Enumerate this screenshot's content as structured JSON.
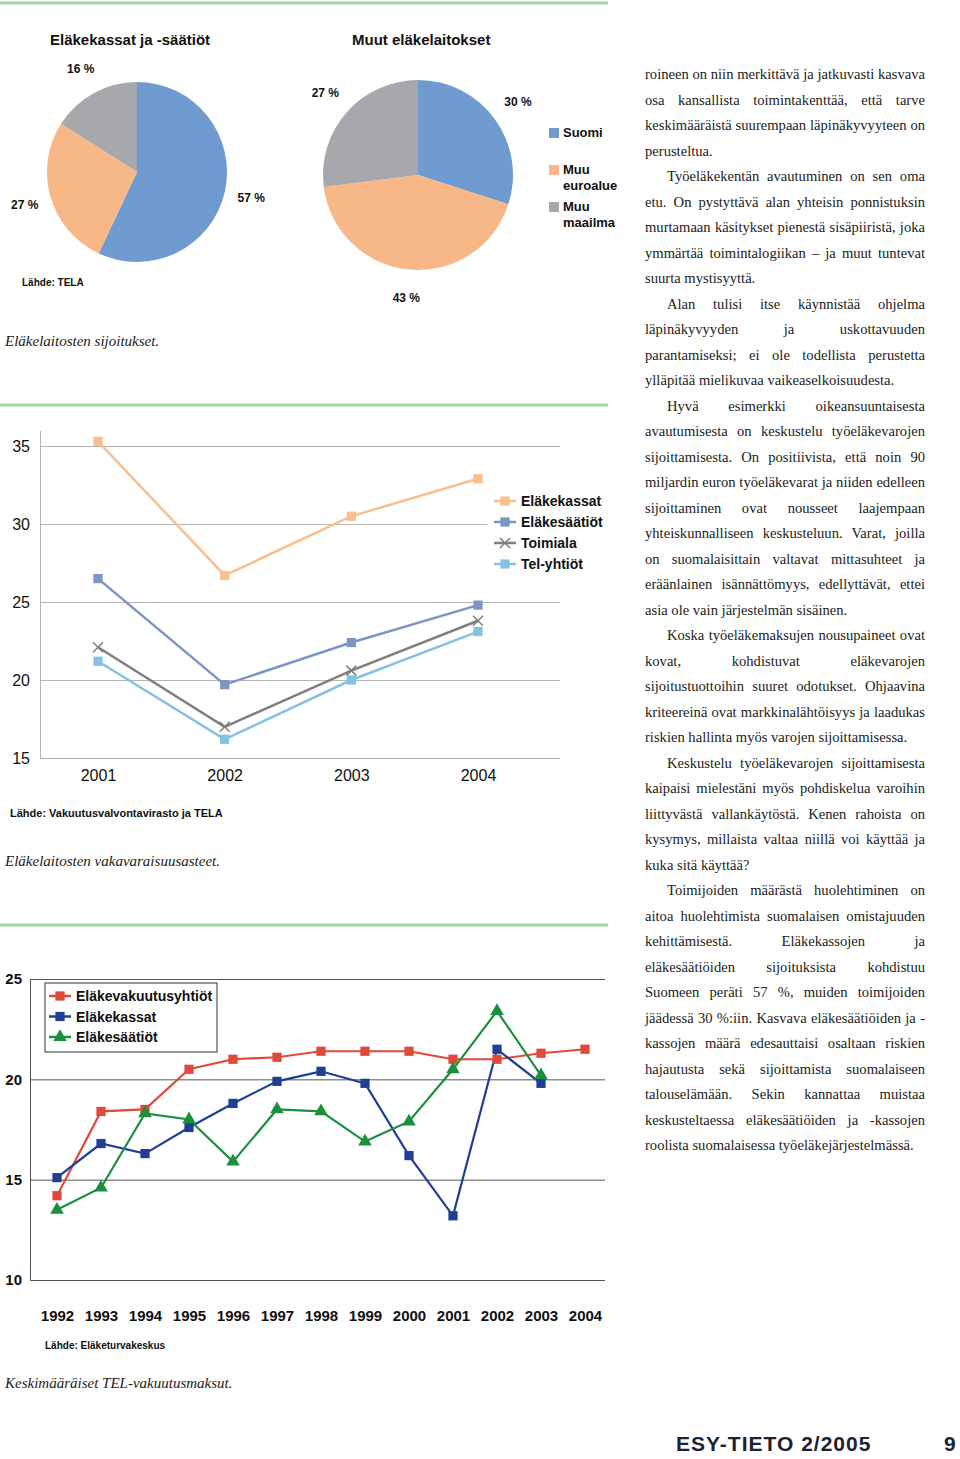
{
  "chart_data": [
    {
      "type": "pie",
      "title": "Eläkekassat ja -säätiöt",
      "source": "Lähde: TELA",
      "caption": "Eläkelaitosten sijoitukset.",
      "values": [
        57,
        27,
        16
      ],
      "value_labels": [
        "57 %",
        "27 %",
        "16 %"
      ],
      "colors": [
        "#6f9bd1",
        "#f8b786",
        "#a7a8ac"
      ],
      "data_labels": true
    },
    {
      "type": "pie",
      "title": "Muut eläkelaitokset",
      "categories": [
        "Suomi",
        "Muu euroalue",
        "Muu maailma"
      ],
      "values": [
        30,
        43,
        27
      ],
      "value_labels": [
        "30 %",
        "43 %",
        "27 %"
      ],
      "colors": [
        "#6f9bd1",
        "#f8b786",
        "#a7a8ac"
      ],
      "data_labels": true,
      "legend": "right"
    },
    {
      "type": "line",
      "caption": "Eläkelaitosten vakavaraisuusasteet.",
      "source": "Lähde: Vakuutusvalvontavirasto ja TELA",
      "categories": [
        "2001",
        "2002",
        "2003",
        "2004"
      ],
      "series": [
        {
          "name": "Eläkekassat",
          "color": "#f9bf8c",
          "marker": "square",
          "values": [
            35.3,
            26.7,
            30.5,
            32.9
          ]
        },
        {
          "name": "Eläkesäätiöt",
          "color": "#7b96c2",
          "marker": "square",
          "values": [
            26.5,
            19.7,
            22.4,
            24.8
          ]
        },
        {
          "name": "Toimiala",
          "color": "#7f7f7f",
          "marker": "x",
          "values": [
            22.1,
            17.0,
            20.6,
            23.8
          ]
        },
        {
          "name": "Tel-yhtiöt",
          "color": "#85c1e3",
          "marker": "square",
          "values": [
            21.2,
            16.2,
            20.0,
            23.1
          ]
        }
      ],
      "ylim": [
        15,
        36
      ],
      "yticks": [
        15,
        20,
        25,
        30,
        35
      ],
      "grid": true,
      "legend": "right"
    },
    {
      "type": "line",
      "caption": "Keskimääräiset TEL-vakuutusmaksut.",
      "source": "Lähde: Eläketurvakeskus",
      "categories": [
        "1992",
        "1993",
        "1994",
        "1995",
        "1996",
        "1997",
        "1998",
        "1999",
        "2000",
        "2001",
        "2002",
        "2003",
        "2004"
      ],
      "series": [
        {
          "name": "Eläkevakuutusyhtiöt",
          "color": "#e0493a",
          "marker": "square",
          "values": [
            14.2,
            18.4,
            18.5,
            20.5,
            21.0,
            21.1,
            21.4,
            21.4,
            21.4,
            21.0,
            21.0,
            21.3,
            21.5
          ]
        },
        {
          "name": "Eläkekassat",
          "color": "#1f3f94",
          "marker": "square",
          "values": [
            15.1,
            16.8,
            16.3,
            17.6,
            18.8,
            19.9,
            20.4,
            19.8,
            16.2,
            13.2,
            21.5,
            19.8,
            null
          ]
        },
        {
          "name": "Eläkesäätiöt",
          "color": "#1a8f3c",
          "marker": "triangle",
          "values": [
            13.5,
            14.6,
            18.3,
            18.0,
            15.9,
            18.5,
            18.4,
            16.9,
            17.9,
            20.5,
            23.4,
            20.2,
            null
          ]
        }
      ],
      "ylim": [
        10,
        25
      ],
      "yticks": [
        10,
        15,
        20,
        25
      ],
      "grid": true,
      "legend": "top-left"
    }
  ],
  "document": {
    "paragraphs": [
      "roineen on niin merkittävä ja jatkuvasti kasvava osa kansallista toimintakenttää, että tarve keskimääräistä suurempaan läpinäkyvyyteen on perusteltua.",
      "Työeläkekentän avautuminen on sen oma etu. On pystyttävä alan yhteisin ponnistuksin murtamaan käsitykset pienestä sisäpiiristä, joka ymmärtää toimintalogiikan – ja muut tuntevat suurta mystisyyttä.",
      "Alan tulisi itse käynnistää ohjelma läpinäkyvyyden ja uskottavuuden parantamiseksi; ei ole todellista perustetta ylläpitää mielikuvaa vaikeaselkoisuudesta.",
      "Hyvä esimerkki oikeansuuntaisesta avautumisesta on keskustelu työeläkevarojen sijoittamisesta. On positiivista, että noin 90 miljardin euron työeläkevarat ja niiden edelleen sijoittaminen ovat nousseet laajempaan yhteiskunnalliseen keskusteluun. Varat, joilla on suomalaisittain valtavat mittasuhteet ja eräänlainen isännättömyys, edellyttävät, ettei asia ole vain järjestelmän sisäinen.",
      "Koska työeläkemaksujen nousupaineet ovat kovat, kohdistuvat eläkevarojen sijoitustuottoihin suuret odotukset. Ohjaavina kriteereinä ovat markkinalähtöisyys ja laadukas riskien hallinta myös varojen sijoittamisessa.",
      "Keskustelu työeläkevarojen sijoittamisesta kaipaisi mielestäni myös pohdiskelua varoihin liittyvästä vallankäytöstä. Kenen rahoista on kysymys, millaista valtaa niillä voi käyttää ja kuka sitä käyttää?",
      "Toimijoiden määrästä huolehtiminen on aitoa huolehtimista suomalaisen omistajuuden kehittämisestä. Eläkekassojen ja eläkesäätiöiden sijoituksista kohdistuu Suomeen peräti 57 %, muiden toimijoiden jäädessä 30 %:iin. Kasvava eläkesäätiöiden ja -kassojen määrä edesauttaisi osaltaan riskien hajautusta sekä sijoittamista suomalaiseen talouselämään. Sekin kannattaa muistaa keskusteltaessa eläkesäätiöiden ja -kassojen roolista suomalaisessa työeläkejärjestelmässä."
    ],
    "footer": {
      "magazine": "ESY-TIETO 2/2005",
      "page": 9
    }
  }
}
